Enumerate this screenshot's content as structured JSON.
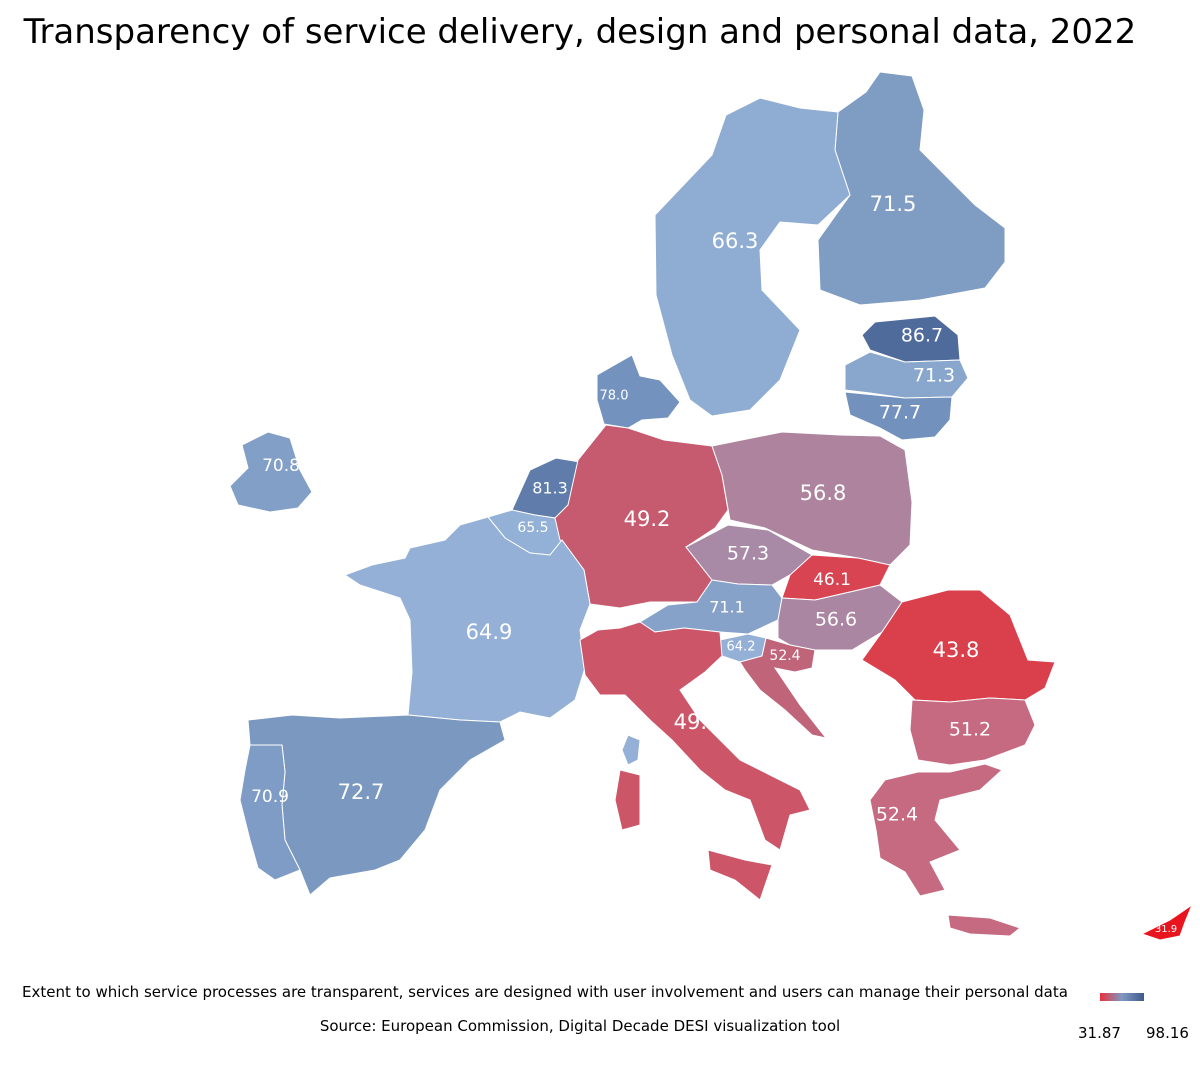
{
  "title": "Transparency of service delivery, design and personal data, 2022",
  "caption": "Extent to which service processes are transparent, services are designed with user involvement and users can manage their personal data",
  "source": "Source: European Commission, Digital Decade DESI visualization tool",
  "legend": {
    "min": "31.87",
    "max": "98.16",
    "color_low": "#e8313c",
    "color_high": "#3f5a8c"
  },
  "countries": [
    {
      "id": "FI",
      "value": "71.5",
      "color": "#7f9cc3"
    },
    {
      "id": "SE",
      "value": "66.3",
      "color": "#8fadd2"
    },
    {
      "id": "EE",
      "value": "86.7",
      "color": "#4f6b9c"
    },
    {
      "id": "LV",
      "value": "71.3",
      "color": "#89a6cd"
    },
    {
      "id": "LT",
      "value": "77.7",
      "color": "#7391bd"
    },
    {
      "id": "DK",
      "value": "78.0",
      "color": "#7392bd"
    },
    {
      "id": "IE",
      "value": "70.8",
      "color": "#819fc7"
    },
    {
      "id": "NL",
      "value": "81.3",
      "color": "#5f7cab"
    },
    {
      "id": "BE",
      "value": "65.5",
      "color": "#93b0d6"
    },
    {
      "id": "DE",
      "value": "49.2",
      "color": "#c65a6e"
    },
    {
      "id": "PL",
      "value": "56.8",
      "color": "#ad839e"
    },
    {
      "id": "CZ",
      "value": "57.3",
      "color": "#a889a6"
    },
    {
      "id": "SK",
      "value": "46.1",
      "color": "#d84452"
    },
    {
      "id": "AT",
      "value": "71.1",
      "color": "#87a2c9"
    },
    {
      "id": "HU",
      "value": "56.6",
      "color": "#ab86a2"
    },
    {
      "id": "SI",
      "value": "64.2",
      "color": "#94b0d6"
    },
    {
      "id": "HR",
      "value": "52.4",
      "color": "#c06479"
    },
    {
      "id": "RO",
      "value": "43.8",
      "color": "#d9404c"
    },
    {
      "id": "FR",
      "value": "64.9",
      "color": "#94b0d6"
    },
    {
      "id": "IT",
      "value": "49.2",
      "color": "#cc5568"
    },
    {
      "id": "BG",
      "value": "51.2",
      "color": "#c56a80"
    },
    {
      "id": "GR",
      "value": "52.4",
      "color": "#c56a80"
    },
    {
      "id": "ES",
      "value": "72.7",
      "color": "#7a98c0"
    },
    {
      "id": "PT",
      "value": "70.9",
      "color": "#7f9cc6"
    },
    {
      "id": "CY",
      "value": "31.9",
      "color": "#e8141e"
    }
  ]
}
